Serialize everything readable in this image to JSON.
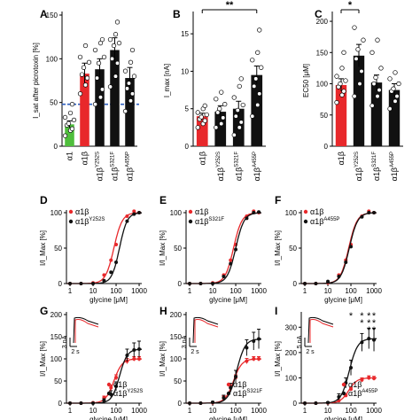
{
  "chart_data": [
    {
      "panel": "A",
      "type": "bar",
      "ylabel": "I_sat after picrotoxin [%]",
      "ylim": [
        0,
        150
      ],
      "yticks": [
        0,
        50,
        100,
        150
      ],
      "categories": [
        "α1",
        "α1β",
        "α1βY252S",
        "α1βS321F",
        "α1βA455P"
      ],
      "bar_colors": [
        "#4fbe3c",
        "#e8282b",
        "#111111",
        "#111111",
        "#111111"
      ],
      "values": [
        25,
        83,
        88,
        110,
        78
      ],
      "errors": [
        4,
        12,
        12,
        14,
        12
      ],
      "reference_line": 48,
      "points": [
        [
          12,
          18,
          20,
          24,
          26,
          30,
          33,
          38,
          48
        ],
        [
          60,
          70,
          78,
          82,
          90,
          96,
          102,
          115
        ],
        [
          48,
          56,
          65,
          78,
          95,
          102,
          110,
          118,
          122
        ],
        [
          68,
          80,
          95,
          100,
          115,
          118,
          122,
          128,
          142
        ],
        [
          40,
          52,
          60,
          66,
          72,
          80,
          86,
          96,
          110
        ]
      ]
    },
    {
      "panel": "B",
      "type": "bar",
      "ylabel": "I_max [nA]",
      "ylim": [
        0,
        17.5
      ],
      "yticks": [
        0,
        5,
        10,
        15
      ],
      "categories": [
        "α1β",
        "α1βY252S",
        "α1βS321F",
        "α1βA455P"
      ],
      "bar_colors": [
        "#e8282b",
        "#111111",
        "#111111",
        "#111111"
      ],
      "values": [
        4.0,
        4.6,
        5.0,
        9.5
      ],
      "errors": [
        0.4,
        0.8,
        1.0,
        1.2
      ],
      "significance": "**",
      "points": [
        [
          2.5,
          3.0,
          3.4,
          3.6,
          3.9,
          4.2,
          4.5,
          5.0,
          5.4
        ],
        [
          2.5,
          3.0,
          3.8,
          4.5,
          5.0,
          5.6,
          6.3,
          7.2
        ],
        [
          1.5,
          2.5,
          3.2,
          4.0,
          4.8,
          5.5,
          6.5,
          8.0,
          9.0
        ],
        [
          4.0,
          5.5,
          7.0,
          8.0,
          9.0,
          10.5,
          11.5,
          12.5,
          15.5
        ]
      ]
    },
    {
      "panel": "C",
      "type": "bar",
      "ylabel": "EC50 [μM]",
      "ylim": [
        0,
        210
      ],
      "yticks": [
        0,
        50,
        100,
        150,
        200
      ],
      "categories": [
        "α1β",
        "α1βY252S",
        "α1βS321F",
        "α1βA455P"
      ],
      "bar_colors": [
        "#e8282b",
        "#111111",
        "#111111",
        "#111111"
      ],
      "values": [
        98,
        145,
        102,
        90
      ],
      "errors": [
        10,
        18,
        12,
        10
      ],
      "significance": "*",
      "points": [
        [
          70,
          82,
          88,
          95,
          100,
          105,
          112,
          125,
          150
        ],
        [
          80,
          100,
          120,
          140,
          155,
          170,
          190
        ],
        [
          65,
          80,
          90,
          100,
          110,
          125,
          150,
          170
        ],
        [
          60,
          72,
          80,
          88,
          92,
          100,
          108,
          118
        ]
      ]
    },
    {
      "panel": "D",
      "type": "line",
      "xlabel": "glycine [μM]",
      "ylabel": "I/I_Max [%]",
      "xscale": "log",
      "xlim": [
        0.7,
        1300
      ],
      "ylim": [
        0,
        100
      ],
      "xticks": [
        1,
        10,
        100,
        1000
      ],
      "yticks": [
        0,
        50,
        100
      ],
      "series": [
        {
          "name": "α1β",
          "color": "#e8282b",
          "ec50": 80,
          "hill": 2.4,
          "max": 100,
          "x": [
            1,
            3,
            10,
            30,
            60,
            100,
            300,
            600,
            1000
          ],
          "y": [
            0,
            0,
            1,
            12,
            33,
            55,
            95,
            102,
            100
          ]
        },
        {
          "name": "α1βY252S",
          "color": "#111111",
          "ec50": 140,
          "hill": 2.6,
          "max": 100,
          "x": [
            1,
            3,
            10,
            30,
            60,
            100,
            300,
            600,
            1000
          ],
          "y": [
            0,
            0,
            0,
            4,
            16,
            30,
            88,
            98,
            100
          ]
        }
      ]
    },
    {
      "panel": "E",
      "type": "line",
      "xlabel": "glycine [μM]",
      "ylabel": "I/I_Max [%]",
      "xscale": "log",
      "xlim": [
        0.7,
        1300
      ],
      "ylim": [
        0,
        100
      ],
      "xticks": [
        1,
        10,
        100,
        1000
      ],
      "yticks": [
        0,
        50,
        100
      ],
      "series": [
        {
          "name": "α1β",
          "color": "#e8282b",
          "ec50": 80,
          "hill": 2.4,
          "max": 100,
          "x": [
            1,
            3,
            10,
            30,
            60,
            100,
            300,
            600,
            1000
          ],
          "y": [
            0,
            0,
            1,
            12,
            33,
            55,
            95,
            102,
            100
          ]
        },
        {
          "name": "α1βS321F",
          "color": "#111111",
          "ec50": 100,
          "hill": 2.4,
          "max": 100,
          "x": [
            1,
            3,
            10,
            30,
            60,
            100,
            300,
            600,
            1000
          ],
          "y": [
            0,
            0,
            0,
            10,
            28,
            48,
            92,
            100,
            101
          ]
        }
      ]
    },
    {
      "panel": "F",
      "type": "line",
      "xlabel": "glycine [μM]",
      "ylabel": "I/I_Max [%]",
      "xscale": "log",
      "xlim": [
        0.7,
        1300
      ],
      "ylim": [
        0,
        100
      ],
      "xticks": [
        1,
        10,
        100,
        1000
      ],
      "yticks": [
        0,
        50,
        100
      ],
      "series": [
        {
          "name": "α1β",
          "color": "#e8282b",
          "ec50": 80,
          "hill": 2.4,
          "max": 100,
          "x": [
            1,
            3,
            10,
            30,
            60,
            100,
            300,
            600,
            1000
          ],
          "y": [
            0,
            0,
            1,
            12,
            33,
            55,
            95,
            102,
            100
          ]
        },
        {
          "name": "α1βA455P",
          "color": "#111111",
          "ec50": 85,
          "hill": 2.4,
          "max": 100,
          "x": [
            1,
            3,
            10,
            30,
            60,
            100,
            300,
            600,
            1000
          ],
          "y": [
            0,
            0,
            3,
            10,
            30,
            52,
            94,
            100,
            100
          ]
        }
      ]
    },
    {
      "panel": "G",
      "type": "line",
      "xlabel": "glycine [μM]",
      "ylabel": "I/I_Max [%]",
      "xscale": "log",
      "xlim": [
        0.7,
        1300
      ],
      "ylim": [
        0,
        200
      ],
      "xticks": [
        1,
        10,
        100,
        1000
      ],
      "yticks": [
        0,
        50,
        100,
        150,
        200
      ],
      "inset_scale": [
        "3 nA",
        "2 s"
      ],
      "series": [
        {
          "name": "α1β",
          "color": "#e8282b",
          "ec50": 80,
          "hill": 2.4,
          "max": 100,
          "x": [
            1,
            3,
            10,
            30,
            60,
            100,
            300,
            600,
            1000
          ],
          "y": [
            0,
            0,
            1,
            12,
            35,
            58,
            95,
            100,
            100
          ],
          "err": [
            0,
            0,
            1,
            4,
            6,
            6,
            6,
            5,
            5
          ]
        },
        {
          "name": "α1βY252S",
          "color": "#111111",
          "ec50": 140,
          "hill": 2.6,
          "max": 122,
          "x": [
            1,
            3,
            10,
            30,
            60,
            100,
            300,
            600,
            1000
          ],
          "y": [
            0,
            0,
            0,
            6,
            20,
            38,
            108,
            120,
            122
          ],
          "err": [
            0,
            0,
            1,
            4,
            8,
            10,
            14,
            16,
            18
          ]
        }
      ]
    },
    {
      "panel": "H",
      "type": "line",
      "xlabel": "glycine [μM]",
      "ylabel": "I/I_Max [%]",
      "xscale": "log",
      "xlim": [
        0.7,
        1300
      ],
      "ylim": [
        0,
        200
      ],
      "xticks": [
        1,
        10,
        100,
        1000
      ],
      "yticks": [
        0,
        50,
        100,
        150,
        200
      ],
      "inset_scale": [
        "3 nA",
        "2 s"
      ],
      "series": [
        {
          "name": "α1β",
          "color": "#e8282b",
          "ec50": 80,
          "hill": 2.4,
          "max": 100,
          "x": [
            1,
            3,
            10,
            30,
            60,
            100,
            300,
            600,
            1000
          ],
          "y": [
            0,
            0,
            1,
            12,
            35,
            58,
            95,
            100,
            100
          ],
          "err": [
            0,
            0,
            1,
            4,
            6,
            6,
            6,
            5,
            5
          ]
        },
        {
          "name": "α1βS321F",
          "color": "#111111",
          "ec50": 110,
          "hill": 2.4,
          "max": 145,
          "x": [
            1,
            3,
            10,
            30,
            60,
            100,
            300,
            600,
            1000
          ],
          "y": [
            0,
            0,
            2,
            12,
            35,
            60,
            125,
            140,
            145
          ],
          "err": [
            0,
            0,
            2,
            6,
            10,
            14,
            18,
            20,
            22
          ]
        }
      ]
    },
    {
      "panel": "I",
      "type": "line",
      "xlabel": "glycine [μM]",
      "ylabel": "I/I_Max [%]",
      "xscale": "log",
      "xlim": [
        0.7,
        1300
      ],
      "ylim": [
        0,
        350
      ],
      "xticks": [
        1,
        10,
        100,
        1000
      ],
      "yticks": [
        0,
        100,
        200,
        300
      ],
      "inset_scale": [
        "5 nA",
        "2 s"
      ],
      "significance": [
        {
          "x": 100,
          "label": "*"
        },
        {
          "x": 300,
          "label": "* *"
        },
        {
          "x": 600,
          "label": "* * *"
        },
        {
          "x": 1000,
          "label": "* * *"
        }
      ],
      "series": [
        {
          "name": "α1β",
          "color": "#e8282b",
          "ec50": 80,
          "hill": 2.4,
          "max": 100,
          "x": [
            1,
            3,
            10,
            30,
            60,
            100,
            300,
            600,
            1000
          ],
          "y": [
            0,
            0,
            1,
            10,
            30,
            55,
            92,
            100,
            98
          ],
          "err": [
            0,
            0,
            1,
            3,
            5,
            6,
            8,
            8,
            8
          ]
        },
        {
          "name": "α1βA455P",
          "color": "#111111",
          "ec50": 85,
          "hill": 2.4,
          "max": 255,
          "x": [
            1,
            3,
            10,
            30,
            60,
            100,
            300,
            600,
            1000
          ],
          "y": [
            0,
            0,
            2,
            25,
            80,
            140,
            240,
            255,
            250
          ],
          "err": [
            0,
            0,
            3,
            12,
            20,
            30,
            35,
            40,
            45
          ]
        }
      ]
    }
  ]
}
